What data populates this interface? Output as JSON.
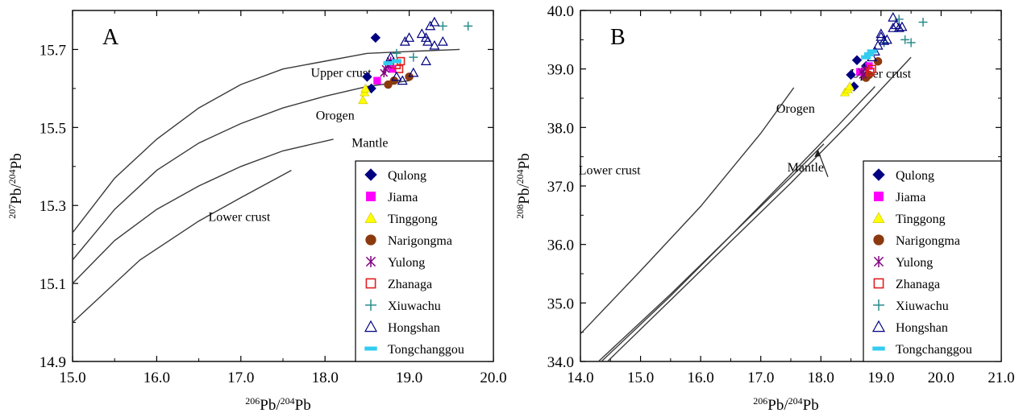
{
  "chart_data": [
    {
      "type": "scatter",
      "panel_label": "A",
      "xlabel_parts": [
        "206",
        "Pb/",
        "204",
        "Pb"
      ],
      "ylabel_parts": [
        "207",
        "Pb/",
        "204",
        "Pb"
      ],
      "xlim": [
        15.0,
        20.0
      ],
      "ylim": [
        14.9,
        15.8
      ],
      "xticks": [
        15.0,
        16.0,
        17.0,
        18.0,
        19.0,
        20.0
      ],
      "xtick_labels": [
        "15.0",
        "16.0",
        "17.0",
        "18.0",
        "19.0",
        "20.0"
      ],
      "yticks": [
        14.9,
        15.1,
        15.3,
        15.5,
        15.7
      ],
      "ytick_labels": [
        "14.9",
        "15.1",
        "15.3",
        "15.5",
        "15.7"
      ],
      "legend_position": "bottom-right",
      "curves": [
        {
          "name": "Upper crust",
          "label_at": [
            18.55,
            15.63
          ],
          "points": [
            [
              15.0,
              15.23
            ],
            [
              15.5,
              15.37
            ],
            [
              16.0,
              15.47
            ],
            [
              16.5,
              15.55
            ],
            [
              17.0,
              15.61
            ],
            [
              17.5,
              15.65
            ],
            [
              18.0,
              15.67
            ],
            [
              18.5,
              15.69
            ],
            [
              19.0,
              15.695
            ],
            [
              19.6,
              15.7
            ]
          ]
        },
        {
          "name": "Orogen",
          "label_at": [
            18.35,
            15.52
          ],
          "points": [
            [
              15.0,
              15.16
            ],
            [
              15.5,
              15.29
            ],
            [
              16.0,
              15.39
            ],
            [
              16.5,
              15.46
            ],
            [
              17.0,
              15.51
            ],
            [
              17.5,
              15.55
            ],
            [
              18.0,
              15.58
            ],
            [
              18.5,
              15.605
            ],
            [
              19.0,
              15.62
            ]
          ]
        },
        {
          "name": "Mantle",
          "label_at": [
            18.75,
            15.45
          ],
          "points": [
            [
              15.0,
              15.1
            ],
            [
              15.5,
              15.21
            ],
            [
              16.0,
              15.29
            ],
            [
              16.5,
              15.35
            ],
            [
              17.0,
              15.4
            ],
            [
              17.5,
              15.44
            ],
            [
              18.1,
              15.47
            ]
          ]
        },
        {
          "name": "Lower crust",
          "label_at": [
            17.35,
            15.26
          ],
          "points": [
            [
              15.0,
              15.0
            ],
            [
              15.8,
              15.16
            ],
            [
              16.5,
              15.26
            ],
            [
              17.0,
              15.32
            ],
            [
              17.6,
              15.39
            ]
          ]
        }
      ],
      "series": [
        {
          "name": "Qulong",
          "marker": "diamond",
          "color": "#000080",
          "points": [
            [
              18.6,
              15.73
            ],
            [
              18.5,
              15.63
            ],
            [
              18.55,
              15.6
            ]
          ]
        },
        {
          "name": "Jiama",
          "marker": "square",
          "color": "#ff00ff",
          "points": [
            [
              18.62,
              15.62
            ],
            [
              18.8,
              15.65
            ]
          ]
        },
        {
          "name": "Tinggong",
          "marker": "triangle",
          "color": "#ffff00",
          "points": [
            [
              18.45,
              15.57
            ],
            [
              18.47,
              15.59
            ],
            [
              18.48,
              15.6
            ]
          ]
        },
        {
          "name": "Narigongma",
          "marker": "circle",
          "color": "#8b3a0e",
          "points": [
            [
              18.75,
              15.61
            ],
            [
              18.82,
              15.62
            ],
            [
              19.0,
              15.63
            ]
          ]
        },
        {
          "name": "Yulong",
          "marker": "asterisk",
          "color": "#800080",
          "points": [
            [
              18.7,
              15.64
            ],
            [
              18.75,
              15.66
            ],
            [
              18.78,
              15.67
            ],
            [
              18.72,
              15.65
            ]
          ]
        },
        {
          "name": "Zhanaga",
          "marker": "open-square",
          "color": "#e02020",
          "points": [
            [
              18.85,
              15.66
            ],
            [
              18.9,
              15.67
            ],
            [
              18.88,
              15.65
            ]
          ]
        },
        {
          "name": "Xiuwachu",
          "marker": "plus",
          "color": "#2a8c8c",
          "points": [
            [
              19.05,
              15.68
            ],
            [
              19.4,
              15.76
            ],
            [
              19.7,
              15.76
            ],
            [
              18.85,
              15.69
            ]
          ]
        },
        {
          "name": "Hongshan",
          "marker": "open-triangle",
          "color": "#000080",
          "points": [
            [
              18.78,
              15.68
            ],
            [
              18.95,
              15.72
            ],
            [
              19.0,
              15.73
            ],
            [
              19.15,
              15.74
            ],
            [
              19.2,
              15.73
            ],
            [
              19.25,
              15.76
            ],
            [
              19.3,
              15.77
            ],
            [
              19.22,
              15.72
            ],
            [
              19.3,
              15.71
            ],
            [
              19.4,
              15.72
            ],
            [
              19.05,
              15.64
            ],
            [
              19.2,
              15.67
            ],
            [
              18.92,
              15.62
            ],
            [
              18.85,
              15.63
            ]
          ]
        },
        {
          "name": "Tongchanggou",
          "marker": "dash",
          "color": "#33ccf0",
          "points": [
            [
              18.75,
              15.665
            ],
            [
              18.85,
              15.67
            ]
          ]
        }
      ]
    },
    {
      "type": "scatter",
      "panel_label": "B",
      "xlabel_parts": [
        "206",
        "Pb/",
        "204",
        "Pb"
      ],
      "ylabel_parts": [
        "208",
        "Pb/",
        "204",
        "Pb"
      ],
      "xlim": [
        14.0,
        21.0
      ],
      "ylim": [
        34.0,
        40.0
      ],
      "xticks": [
        14.0,
        15.0,
        16.0,
        17.0,
        18.0,
        19.0,
        20.0,
        21.0
      ],
      "xtick_labels": [
        "14.0",
        "15.0",
        "16.0",
        "17.0",
        "18.0",
        "19.0",
        "20.0",
        "21.0"
      ],
      "yticks": [
        34.0,
        35.0,
        36.0,
        37.0,
        38.0,
        39.0,
        40.0
      ],
      "ytick_labels": [
        "34.0",
        "35.0",
        "36.0",
        "37.0",
        "38.0",
        "39.0",
        "40.0"
      ],
      "legend_position": "bottom-right",
      "curves": [
        {
          "name": "Lower crust",
          "label_at": [
            15.0,
            37.2
          ],
          "points": [
            [
              14.0,
              34.47
            ],
            [
              15.0,
              35.55
            ],
            [
              16.0,
              36.65
            ],
            [
              17.0,
              37.9
            ],
            [
              17.55,
              38.68
            ]
          ]
        },
        {
          "name": "Orogen",
          "label_at": [
            17.9,
            38.25
          ],
          "points": [
            [
              14.3,
              34.0
            ],
            [
              15.5,
              35.15
            ],
            [
              16.5,
              36.15
            ],
            [
              17.5,
              37.2
            ],
            [
              18.3,
              38.05
            ],
            [
              18.9,
              38.7
            ]
          ]
        },
        {
          "name": "Mantle",
          "label_at": [
            18.05,
            37.25
          ],
          "points": [
            [
              14.35,
              34.0
            ],
            [
              15.5,
              35.12
            ],
            [
              16.5,
              36.15
            ],
            [
              17.5,
              37.15
            ],
            [
              18.05,
              37.72
            ]
          ]
        },
        {
          "name": "Upper crust",
          "label_at": [
            19.5,
            38.85
          ],
          "points": [
            [
              14.45,
              34.0
            ],
            [
              15.5,
              35.05
            ],
            [
              16.5,
              36.05
            ],
            [
              17.5,
              37.05
            ],
            [
              18.5,
              38.1
            ],
            [
              19.5,
              39.2
            ]
          ]
        }
      ],
      "series": [
        {
          "name": "Qulong",
          "marker": "diamond",
          "color": "#000080",
          "points": [
            [
              18.5,
              38.9
            ],
            [
              18.6,
              39.15
            ],
            [
              18.55,
              38.7
            ],
            [
              18.75,
              39.05
            ]
          ]
        },
        {
          "name": "Jiama",
          "marker": "square",
          "color": "#ff00ff",
          "points": [
            [
              18.65,
              38.95
            ],
            [
              18.8,
              39.05
            ]
          ]
        },
        {
          "name": "Tinggong",
          "marker": "triangle",
          "color": "#ffff00",
          "points": [
            [
              18.4,
              38.6
            ],
            [
              18.45,
              38.65
            ],
            [
              18.48,
              38.7
            ]
          ]
        },
        {
          "name": "Narigongma",
          "marker": "circle",
          "color": "#8b3a0e",
          "points": [
            [
              18.75,
              38.85
            ],
            [
              18.8,
              38.9
            ],
            [
              18.95,
              39.13
            ]
          ]
        },
        {
          "name": "Yulong",
          "marker": "asterisk",
          "color": "#800080",
          "points": [
            [
              18.7,
              38.9
            ],
            [
              18.75,
              39.0
            ],
            [
              18.68,
              38.95
            ]
          ]
        },
        {
          "name": "Zhanaga",
          "marker": "open-square",
          "color": "#e02020",
          "points": [
            [
              18.85,
              39.0
            ],
            [
              18.82,
              38.95
            ]
          ]
        },
        {
          "name": "Xiuwachu",
          "marker": "plus",
          "color": "#2a8c8c",
          "points": [
            [
              19.3,
              39.85
            ],
            [
              19.4,
              39.5
            ],
            [
              19.5,
              39.45
            ],
            [
              19.7,
              39.8
            ],
            [
              19.05,
              39.45
            ]
          ]
        },
        {
          "name": "Hongshan",
          "marker": "open-triangle",
          "color": "#000080",
          "points": [
            [
              19.2,
              39.88
            ],
            [
              19.25,
              39.75
            ],
            [
              19.3,
              39.7
            ],
            [
              19.0,
              39.6
            ],
            [
              19.05,
              39.48
            ],
            [
              19.1,
              39.5
            ],
            [
              18.95,
              39.4
            ],
            [
              18.9,
              39.3
            ],
            [
              19.2,
              39.7
            ],
            [
              19.35,
              39.72
            ],
            [
              18.85,
              39.2
            ],
            [
              19.0,
              39.55
            ]
          ]
        },
        {
          "name": "Tongchanggou",
          "marker": "dash",
          "color": "#33ccf0",
          "points": [
            [
              18.8,
              39.25
            ],
            [
              18.85,
              39.3
            ],
            [
              18.75,
              39.2
            ]
          ]
        }
      ]
    }
  ]
}
